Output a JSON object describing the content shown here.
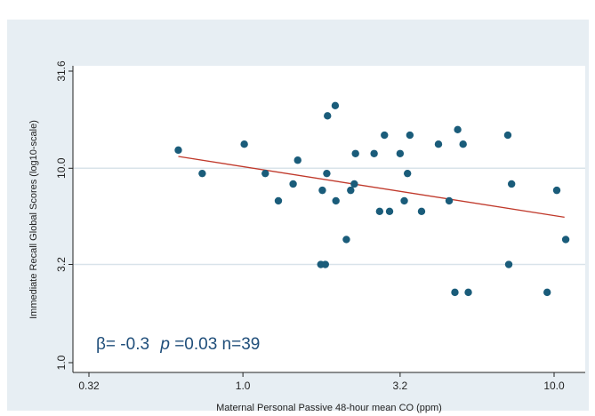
{
  "chart_data": {
    "type": "scatter",
    "title": "",
    "xlabel": "Maternal Personal Passive 48-hour mean CO (ppm)",
    "ylabel": "Immediate Recall Global Scores (log10-scale)",
    "x_scale": "log",
    "y_scale": "log",
    "xlim": [
      0.32,
      11.5
    ],
    "ylim": [
      1.0,
      31.6
    ],
    "x_ticks": [
      0.32,
      1.0,
      3.2,
      10.0
    ],
    "x_tick_labels": [
      "0.32",
      "1.0",
      "3.2",
      "10.0"
    ],
    "y_ticks": [
      1.0,
      3.2,
      10.0,
      31.6
    ],
    "y_tick_labels": [
      "1.0",
      "3.2",
      "10.0",
      "31.6"
    ],
    "grid": true,
    "marker_color": "#1a5c7a",
    "fit_line_color": "#c0392b",
    "fit_line": {
      "x": [
        0.62,
        10.8
      ],
      "y": [
        11.5,
        5.6
      ]
    },
    "annotation": {
      "beta_text": "β= -0.3",
      "p_symbol": "p",
      "p_rest": "=0.03 n=39"
    },
    "points": [
      {
        "x": 0.62,
        "y": 12.4
      },
      {
        "x": 0.74,
        "y": 9.4
      },
      {
        "x": 1.01,
        "y": 13.3
      },
      {
        "x": 1.18,
        "y": 9.4
      },
      {
        "x": 1.3,
        "y": 6.8
      },
      {
        "x": 1.45,
        "y": 8.3
      },
      {
        "x": 1.5,
        "y": 11.0
      },
      {
        "x": 1.78,
        "y": 3.2
      },
      {
        "x": 1.8,
        "y": 7.7
      },
      {
        "x": 1.84,
        "y": 3.2
      },
      {
        "x": 1.86,
        "y": 9.4
      },
      {
        "x": 1.87,
        "y": 18.6
      },
      {
        "x": 1.98,
        "y": 21.0
      },
      {
        "x": 1.99,
        "y": 6.8
      },
      {
        "x": 2.15,
        "y": 4.3
      },
      {
        "x": 2.22,
        "y": 7.7
      },
      {
        "x": 2.28,
        "y": 8.3
      },
      {
        "x": 2.3,
        "y": 11.9
      },
      {
        "x": 2.64,
        "y": 11.9
      },
      {
        "x": 2.75,
        "y": 6.0
      },
      {
        "x": 2.85,
        "y": 14.8
      },
      {
        "x": 2.96,
        "y": 6.0
      },
      {
        "x": 3.2,
        "y": 11.9
      },
      {
        "x": 3.3,
        "y": 6.8
      },
      {
        "x": 3.38,
        "y": 9.4
      },
      {
        "x": 3.44,
        "y": 14.8
      },
      {
        "x": 3.75,
        "y": 6.0
      },
      {
        "x": 4.25,
        "y": 13.3
      },
      {
        "x": 4.6,
        "y": 6.8
      },
      {
        "x": 4.8,
        "y": 2.3
      },
      {
        "x": 4.9,
        "y": 15.8
      },
      {
        "x": 5.1,
        "y": 13.3
      },
      {
        "x": 5.3,
        "y": 2.3
      },
      {
        "x": 7.1,
        "y": 14.8
      },
      {
        "x": 7.15,
        "y": 3.2
      },
      {
        "x": 7.3,
        "y": 8.3
      },
      {
        "x": 9.5,
        "y": 2.3
      },
      {
        "x": 10.2,
        "y": 7.7
      },
      {
        "x": 10.9,
        "y": 4.3
      }
    ]
  }
}
